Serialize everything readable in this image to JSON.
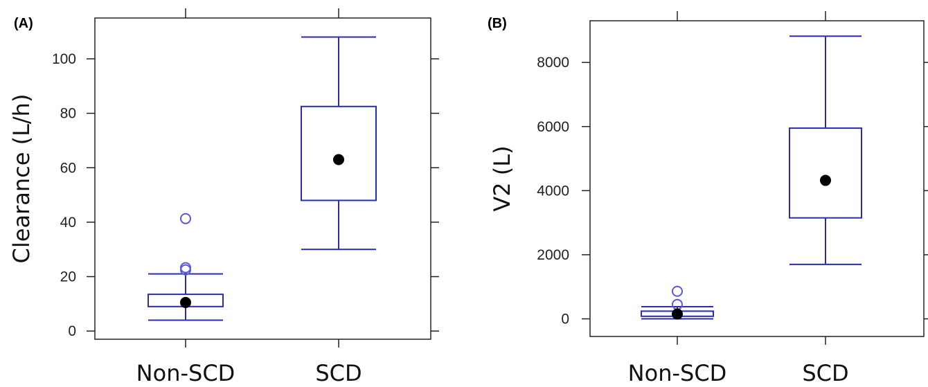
{
  "chart_data": [
    {
      "type": "box",
      "panel_label": "(A)",
      "ylabel": "Clearance (L/h)",
      "categories": [
        "Non-SCD",
        "SCD"
      ],
      "ylim": [
        -3,
        115
      ],
      "yticks": [
        0,
        20,
        40,
        60,
        80,
        100
      ],
      "boxes": [
        {
          "category": "Non-SCD",
          "whisker_low": 4,
          "q1": 9,
          "q3": 13.5,
          "whisker_high": 21,
          "mean": 10.5,
          "outliers": [
            22.5,
            23.3,
            41.3
          ]
        },
        {
          "category": "SCD",
          "whisker_low": 30,
          "q1": 48,
          "q3": 82.5,
          "whisker_high": 108,
          "mean": 63,
          "outliers": []
        }
      ],
      "colors": {
        "box": "#2b2bb0",
        "outlier": "#5a5ad6",
        "mean": "#000000"
      }
    },
    {
      "type": "box",
      "panel_label": "(B)",
      "ylabel": "V2 (L)",
      "categories": [
        "Non-SCD",
        "SCD"
      ],
      "ylim": [
        -550,
        9300
      ],
      "yticks": [
        0,
        2000,
        4000,
        6000,
        8000
      ],
      "boxes": [
        {
          "category": "Non-SCD",
          "whisker_low": 0,
          "q1": 80,
          "q3": 240,
          "whisker_high": 380,
          "mean": 150,
          "outliers": [
            450,
            860
          ]
        },
        {
          "category": "SCD",
          "whisker_low": 1700,
          "q1": 3150,
          "q3": 5950,
          "whisker_high": 8820,
          "mean": 4320,
          "outliers": []
        }
      ],
      "colors": {
        "box": "#2b2bb0",
        "outlier": "#5a5ad6",
        "mean": "#000000"
      }
    }
  ]
}
